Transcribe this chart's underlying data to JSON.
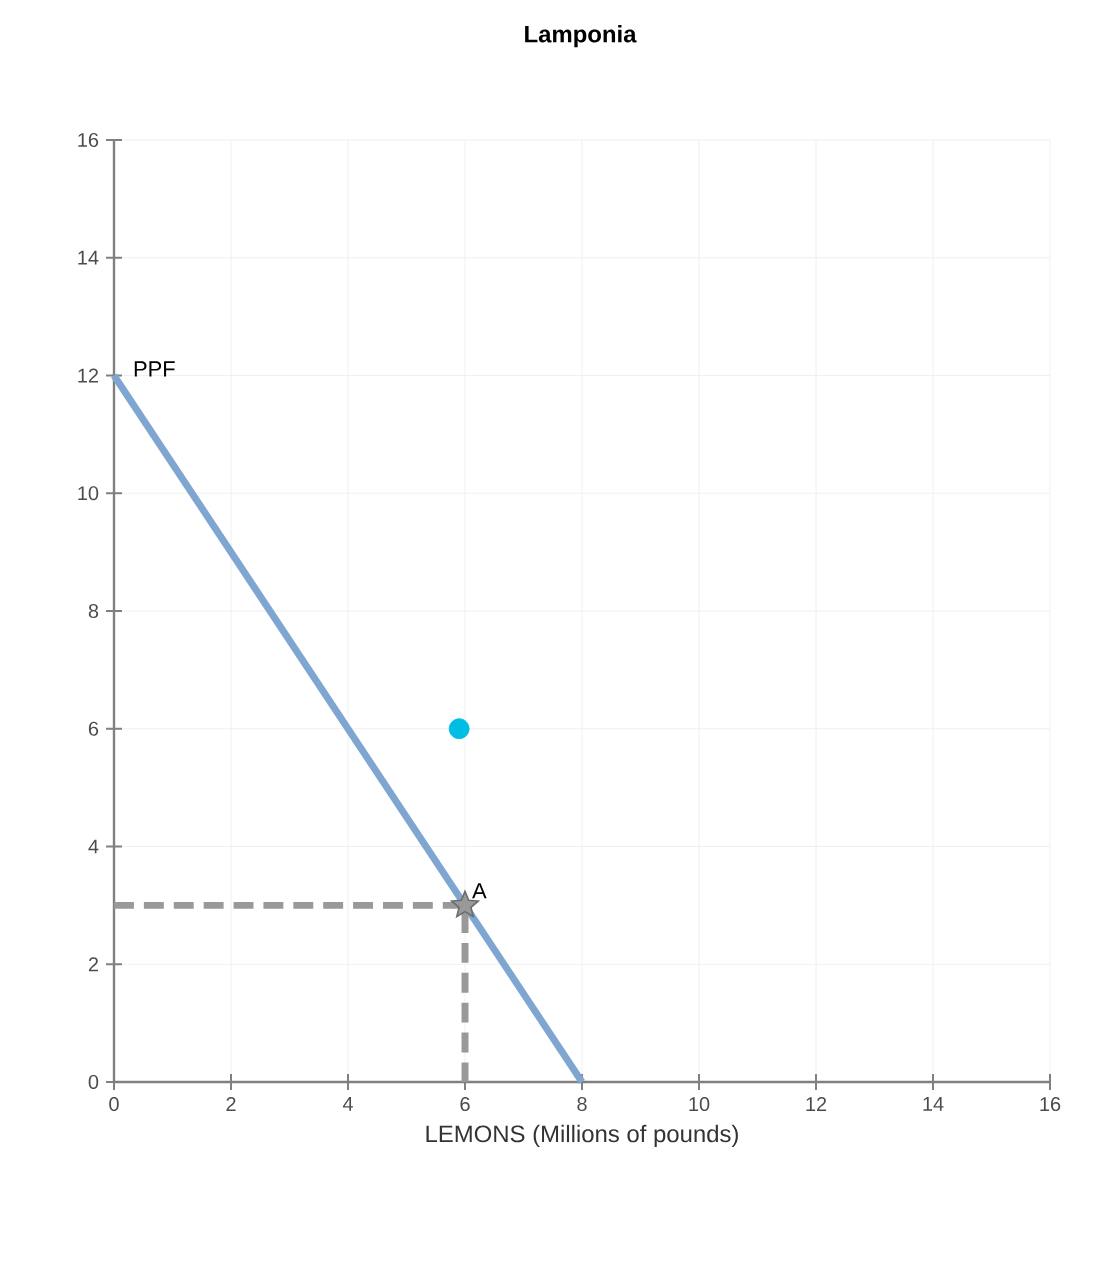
{
  "chart_data": {
    "type": "line",
    "title": "Lamponia",
    "xlabel": "LEMONS (Millions of pounds)",
    "xlim": [
      0,
      16
    ],
    "ylim": [
      0,
      16
    ],
    "xticks": [
      0,
      2,
      4,
      6,
      8,
      10,
      12,
      14,
      16
    ],
    "yticks": [
      0,
      2,
      4,
      6,
      8,
      10,
      12,
      14,
      16
    ],
    "grid": true,
    "series": [
      {
        "name": "PPF",
        "color": "#7fa6d1",
        "x": [
          0,
          8
        ],
        "values": [
          12,
          0
        ]
      },
      {
        "color": "#999999",
        "line_style": "dashed",
        "x": [
          0,
          6,
          6
        ],
        "values": [
          3,
          3,
          0
        ]
      },
      {
        "type": "scatter",
        "color": "#00bde6",
        "marker": "circle",
        "x": [
          5.9
        ],
        "values": [
          6
        ]
      },
      {
        "type": "scatter",
        "color": "#999999",
        "marker": "star",
        "x": [
          6
        ],
        "values": [
          3
        ]
      }
    ],
    "annotations": [
      {
        "text": "A",
        "x": 6,
        "y": 3
      }
    ]
  }
}
